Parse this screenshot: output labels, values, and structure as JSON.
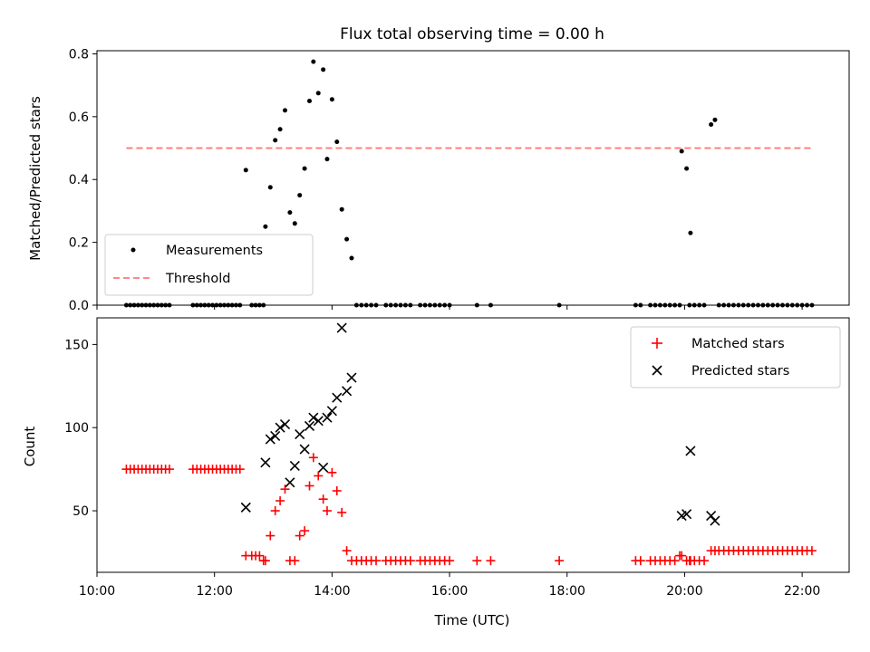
{
  "chart_data": [
    {
      "type": "scatter",
      "title": "Flux total observing time = 0.00 h",
      "xlabel": "",
      "ylabel": "Matched/Predicted stars",
      "xlim": [
        "10:00",
        "22:48"
      ],
      "ylim": [
        0,
        0.81
      ],
      "xticks": [
        "10:00",
        "12:00",
        "14:00",
        "16:00",
        "18:00",
        "20:00",
        "22:00"
      ],
      "yticks": [
        "0.0",
        "0.2",
        "0.4",
        "0.6",
        "0.8"
      ],
      "legend_position": "lower-left",
      "series": [
        {
          "name": "Measurements",
          "marker": "dot",
          "color": "#000000",
          "points": [
            [
              "10:30",
              0
            ],
            [
              "10:34",
              0
            ],
            [
              "10:38",
              0
            ],
            [
              "10:42",
              0
            ],
            [
              "10:46",
              0
            ],
            [
              "10:50",
              0
            ],
            [
              "10:54",
              0
            ],
            [
              "10:58",
              0
            ],
            [
              "11:02",
              0
            ],
            [
              "11:06",
              0
            ],
            [
              "11:10",
              0
            ],
            [
              "11:14",
              0
            ],
            [
              "11:38",
              0
            ],
            [
              "11:42",
              0
            ],
            [
              "11:46",
              0
            ],
            [
              "11:50",
              0
            ],
            [
              "11:54",
              0
            ],
            [
              "11:58",
              0
            ],
            [
              "12:02",
              0
            ],
            [
              "12:06",
              0
            ],
            [
              "12:10",
              0
            ],
            [
              "12:14",
              0
            ],
            [
              "12:18",
              0
            ],
            [
              "12:22",
              0
            ],
            [
              "12:26",
              0
            ],
            [
              "12:32",
              0.43
            ],
            [
              "12:38",
              0
            ],
            [
              "12:42",
              0
            ],
            [
              "12:46",
              0
            ],
            [
              "12:50",
              0
            ],
            [
              "12:52",
              0.25
            ],
            [
              "12:57",
              0.375
            ],
            [
              "13:02",
              0.525
            ],
            [
              "13:07",
              0.56
            ],
            [
              "13:12",
              0.62
            ],
            [
              "13:17",
              0.295
            ],
            [
              "13:22",
              0.26
            ],
            [
              "13:27",
              0.35
            ],
            [
              "13:32",
              0.435
            ],
            [
              "13:37",
              0.65
            ],
            [
              "13:41",
              0.775
            ],
            [
              "13:46",
              0.675
            ],
            [
              "13:51",
              0.75
            ],
            [
              "13:55",
              0.465
            ],
            [
              "14:00",
              0.655
            ],
            [
              "14:05",
              0.52
            ],
            [
              "14:10",
              0.305
            ],
            [
              "14:15",
              0.21
            ],
            [
              "14:20",
              0.15
            ],
            [
              "14:25",
              0
            ],
            [
              "14:30",
              0
            ],
            [
              "14:35",
              0
            ],
            [
              "14:40",
              0
            ],
            [
              "14:45",
              0
            ],
            [
              "14:55",
              0
            ],
            [
              "15:00",
              0
            ],
            [
              "15:05",
              0
            ],
            [
              "15:10",
              0
            ],
            [
              "15:15",
              0
            ],
            [
              "15:20",
              0
            ],
            [
              "15:30",
              0
            ],
            [
              "15:35",
              0
            ],
            [
              "15:40",
              0
            ],
            [
              "15:45",
              0
            ],
            [
              "15:50",
              0
            ],
            [
              "15:55",
              0
            ],
            [
              "16:00",
              0
            ],
            [
              "16:28",
              0
            ],
            [
              "16:42",
              0
            ],
            [
              "17:52",
              0
            ],
            [
              "19:10",
              0
            ],
            [
              "19:15",
              0
            ],
            [
              "19:25",
              0
            ],
            [
              "19:30",
              0
            ],
            [
              "19:35",
              0
            ],
            [
              "19:40",
              0
            ],
            [
              "19:45",
              0
            ],
            [
              "19:50",
              0
            ],
            [
              "19:55",
              0
            ],
            [
              "19:57",
              0.49
            ],
            [
              "20:02",
              0.435
            ],
            [
              "20:06",
              0.23
            ],
            [
              "20:05",
              0
            ],
            [
              "20:10",
              0
            ],
            [
              "20:15",
              0
            ],
            [
              "20:20",
              0
            ],
            [
              "20:27",
              0.575
            ],
            [
              "20:31",
              0.59
            ],
            [
              "20:35",
              0
            ],
            [
              "20:40",
              0
            ],
            [
              "20:45",
              0
            ],
            [
              "20:50",
              0
            ],
            [
              "20:55",
              0
            ],
            [
              "21:00",
              0
            ],
            [
              "21:05",
              0
            ],
            [
              "21:10",
              0
            ],
            [
              "21:15",
              0
            ],
            [
              "21:20",
              0
            ],
            [
              "21:25",
              0
            ],
            [
              "21:30",
              0
            ],
            [
              "21:35",
              0
            ],
            [
              "21:40",
              0
            ],
            [
              "21:45",
              0
            ],
            [
              "21:50",
              0
            ],
            [
              "21:55",
              0
            ],
            [
              "22:00",
              0
            ],
            [
              "22:05",
              0
            ],
            [
              "22:10",
              0
            ]
          ]
        },
        {
          "name": "Threshold",
          "type": "line",
          "style": "dashed",
          "color": "#ff7878",
          "points": [
            [
              "10:30",
              0.5
            ],
            [
              "22:10",
              0.5
            ]
          ]
        }
      ]
    },
    {
      "type": "scatter",
      "title": "",
      "xlabel": "Time (UTC)",
      "ylabel": "Count",
      "xlim": [
        "10:00",
        "22:48"
      ],
      "ylim": [
        13,
        166
      ],
      "xticks": [
        "10:00",
        "12:00",
        "14:00",
        "16:00",
        "18:00",
        "20:00",
        "22:00"
      ],
      "yticks": [
        "50",
        "100",
        "150"
      ],
      "legend_position": "upper-right",
      "series": [
        {
          "name": "Matched stars",
          "marker": "plus",
          "color": "#ff0000",
          "points": [
            [
              "10:30",
              75
            ],
            [
              "10:34",
              75
            ],
            [
              "10:38",
              75
            ],
            [
              "10:42",
              75
            ],
            [
              "10:46",
              75
            ],
            [
              "10:50",
              75
            ],
            [
              "10:54",
              75
            ],
            [
              "10:58",
              75
            ],
            [
              "11:02",
              75
            ],
            [
              "11:06",
              75
            ],
            [
              "11:10",
              75
            ],
            [
              "11:14",
              75
            ],
            [
              "11:38",
              75
            ],
            [
              "11:42",
              75
            ],
            [
              "11:46",
              75
            ],
            [
              "11:50",
              75
            ],
            [
              "11:54",
              75
            ],
            [
              "11:58",
              75
            ],
            [
              "12:02",
              75
            ],
            [
              "12:06",
              75
            ],
            [
              "12:10",
              75
            ],
            [
              "12:14",
              75
            ],
            [
              "12:18",
              75
            ],
            [
              "12:22",
              75
            ],
            [
              "12:26",
              75
            ],
            [
              "12:32",
              23
            ],
            [
              "12:38",
              23
            ],
            [
              "12:42",
              23
            ],
            [
              "12:46",
              23
            ],
            [
              "12:50",
              20
            ],
            [
              "12:52",
              20
            ],
            [
              "12:57",
              35
            ],
            [
              "13:02",
              50
            ],
            [
              "13:07",
              56
            ],
            [
              "13:12",
              63
            ],
            [
              "13:17",
              20
            ],
            [
              "13:22",
              20
            ],
            [
              "13:27",
              35
            ],
            [
              "13:32",
              38
            ],
            [
              "13:37",
              65
            ],
            [
              "13:41",
              82
            ],
            [
              "13:46",
              71
            ],
            [
              "13:51",
              57
            ],
            [
              "13:55",
              50
            ],
            [
              "14:00",
              73
            ],
            [
              "14:05",
              62
            ],
            [
              "14:10",
              49
            ],
            [
              "14:15",
              26
            ],
            [
              "14:20",
              20
            ],
            [
              "14:25",
              20
            ],
            [
              "14:30",
              20
            ],
            [
              "14:35",
              20
            ],
            [
              "14:40",
              20
            ],
            [
              "14:45",
              20
            ],
            [
              "14:55",
              20
            ],
            [
              "15:00",
              20
            ],
            [
              "15:05",
              20
            ],
            [
              "15:10",
              20
            ],
            [
              "15:15",
              20
            ],
            [
              "15:20",
              20
            ],
            [
              "15:30",
              20
            ],
            [
              "15:35",
              20
            ],
            [
              "15:40",
              20
            ],
            [
              "15:45",
              20
            ],
            [
              "15:50",
              20
            ],
            [
              "15:55",
              20
            ],
            [
              "16:00",
              20
            ],
            [
              "16:28",
              20
            ],
            [
              "16:42",
              20
            ],
            [
              "17:52",
              20
            ],
            [
              "19:10",
              20
            ],
            [
              "19:15",
              20
            ],
            [
              "19:25",
              20
            ],
            [
              "19:30",
              20
            ],
            [
              "19:35",
              20
            ],
            [
              "19:40",
              20
            ],
            [
              "19:45",
              20
            ],
            [
              "19:50",
              20
            ],
            [
              "19:55",
              23
            ],
            [
              "19:57",
              23
            ],
            [
              "20:02",
              20
            ],
            [
              "20:05",
              20
            ],
            [
              "20:06",
              20
            ],
            [
              "20:10",
              20
            ],
            [
              "20:15",
              20
            ],
            [
              "20:20",
              20
            ],
            [
              "20:27",
              26
            ],
            [
              "20:31",
              26
            ],
            [
              "20:35",
              26
            ],
            [
              "20:40",
              26
            ],
            [
              "20:45",
              26
            ],
            [
              "20:50",
              26
            ],
            [
              "20:55",
              26
            ],
            [
              "21:00",
              26
            ],
            [
              "21:05",
              26
            ],
            [
              "21:10",
              26
            ],
            [
              "21:15",
              26
            ],
            [
              "21:20",
              26
            ],
            [
              "21:25",
              26
            ],
            [
              "21:30",
              26
            ],
            [
              "21:35",
              26
            ],
            [
              "21:40",
              26
            ],
            [
              "21:45",
              26
            ],
            [
              "21:50",
              26
            ],
            [
              "21:55",
              26
            ],
            [
              "22:00",
              26
            ],
            [
              "22:05",
              26
            ],
            [
              "22:10",
              26
            ]
          ]
        },
        {
          "name": "Predicted stars",
          "marker": "x",
          "color": "#000000",
          "points": [
            [
              "12:32",
              52
            ],
            [
              "12:52",
              79
            ],
            [
              "12:57",
              93
            ],
            [
              "13:02",
              95
            ],
            [
              "13:07",
              100
            ],
            [
              "13:12",
              102
            ],
            [
              "13:17",
              67
            ],
            [
              "13:22",
              77
            ],
            [
              "13:27",
              96
            ],
            [
              "13:32",
              87
            ],
            [
              "13:37",
              101
            ],
            [
              "13:41",
              106
            ],
            [
              "13:46",
              104
            ],
            [
              "13:51",
              76
            ],
            [
              "13:55",
              106
            ],
            [
              "14:00",
              110
            ],
            [
              "14:05",
              118
            ],
            [
              "14:10",
              160
            ],
            [
              "14:15",
              122
            ],
            [
              "14:20",
              130
            ],
            [
              "19:57",
              47
            ],
            [
              "20:02",
              48
            ],
            [
              "20:06",
              86
            ],
            [
              "20:27",
              47
            ],
            [
              "20:31",
              44
            ]
          ]
        }
      ]
    }
  ]
}
